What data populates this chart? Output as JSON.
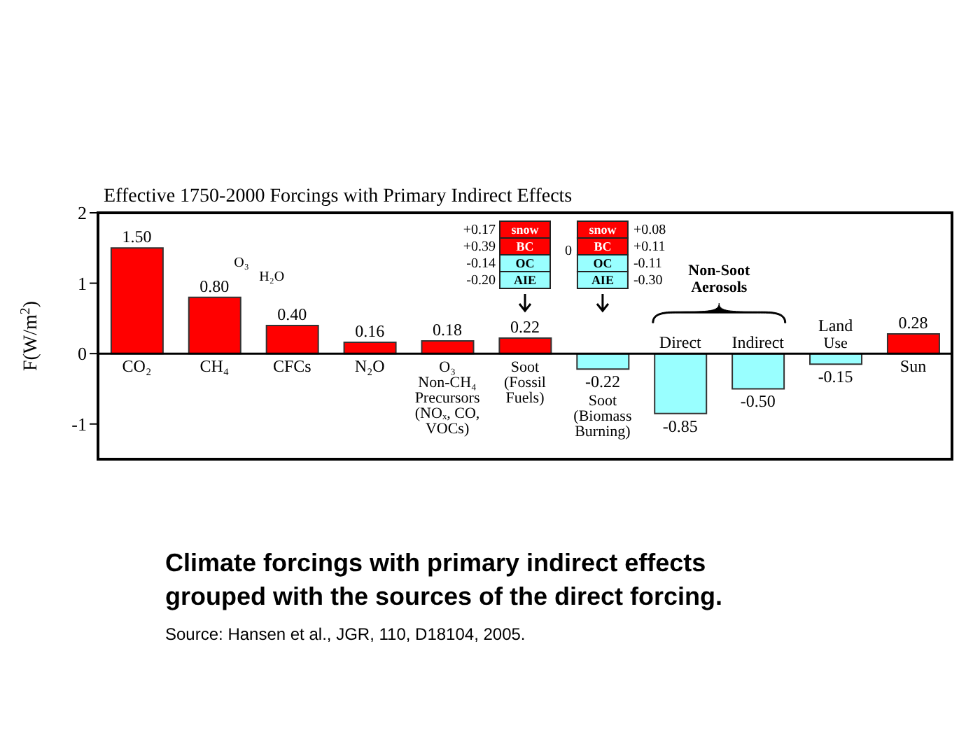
{
  "chart_data": {
    "type": "bar",
    "title": "Effective 1750-2000 Forcings with Primary Indirect Effects",
    "ylabel": "F(W/m$^{2}$)",
    "categories": [
      "CO₂",
      "CH₄",
      "CFCs",
      "N₂O",
      "O₃\nNon-CH₄\nPrecursors\n(NOₓ, CO,\nVOCs)",
      "Soot\n(Fossil\nFuels)",
      "Soot\n(Biomass\nBurning)",
      "Direct",
      "Indirect",
      "Land\nUse",
      "Sun"
    ],
    "values": [
      1.5,
      0.8,
      0.4,
      0.16,
      0.18,
      0.22,
      -0.22,
      -0.85,
      -0.5,
      -0.15,
      0.28
    ],
    "colors": [
      "#ff0000",
      "#ff0000",
      "#ff0000",
      "#ff0000",
      "#ff0000",
      "#ff0000",
      "#99ffff",
      "#99ffff",
      "#99ffff",
      "#99ffff",
      "#ff0000"
    ],
    "value_labels": [
      "1.50",
      "0.80",
      "0.40",
      "0.16",
      "0.18",
      "0.22",
      "-0.22",
      "-0.85",
      "-0.50",
      "-0.15",
      "0.28"
    ],
    "ylim": [
      -1.5,
      2
    ],
    "yticks": [
      -1,
      0,
      1,
      2
    ],
    "annotations": [
      "O₃",
      "H₂O",
      "+0.17",
      "snow",
      "+0.39",
      "BC",
      "-0.14",
      "OC",
      "-0.20",
      "AIE",
      "snow",
      "+0.08",
      "BC",
      "+0.11",
      "OC",
      "-0.11",
      "AIE",
      "-0.30",
      "0",
      "Non-Soot Aerosols",
      "Climate forcings with primary indirect effects grouped with the sources of the direct forcing.",
      "Source: Hansen et al., JGR, 110, D18104, 2005."
    ]
  }
}
